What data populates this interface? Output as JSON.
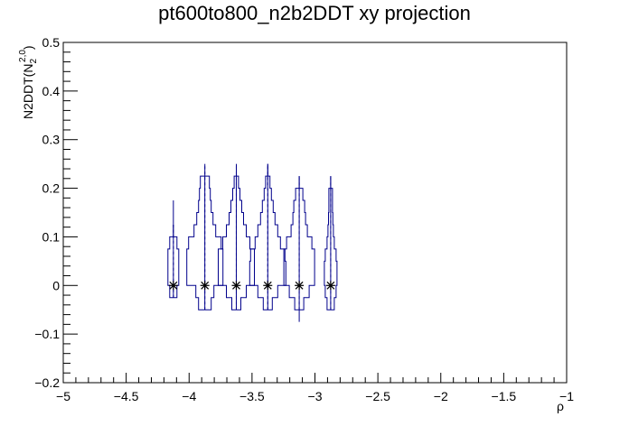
{
  "chart_data": {
    "type": "violin",
    "title": "pt600to800_n2b2DDT xy projection",
    "xlabel": "ρ",
    "ylabel_main": "N2DDT(N",
    "ylabel_sub": "2",
    "ylabel_sup": "2,0",
    "ylabel_close": ")",
    "xlim": [
      -5,
      -1
    ],
    "ylim": [
      -0.2,
      0.5
    ],
    "x_ticks": [
      -5,
      -4.5,
      -4,
      -3.5,
      -3,
      -2.5,
      -2,
      -1.5,
      -1
    ],
    "x_tick_labels": [
      "−5",
      "−4.5",
      "−4",
      "−3.5",
      "−3",
      "−2.5",
      "−2",
      "−1.5",
      "−1"
    ],
    "y_ticks": [
      -0.2,
      -0.1,
      0,
      0.1,
      0.2,
      0.3,
      0.4,
      0.5
    ],
    "y_tick_labels": [
      "−0.2",
      "−0.1",
      "0",
      "0.1",
      "0.2",
      "0.3",
      "0.4",
      "0.5"
    ],
    "line_color": "#00008b",
    "marker_color": "#000000",
    "series": [
      {
        "x": -4.125,
        "mean": 0,
        "profile": [
          {
            "y": -0.025,
            "w": 0.2
          },
          {
            "y": 0.0,
            "w": 0.3
          },
          {
            "y": 0.025,
            "w": 0.3
          },
          {
            "y": 0.05,
            "w": 0.3
          },
          {
            "y": 0.075,
            "w": 0.2
          },
          {
            "y": 0.1,
            "w": 0.0
          }
        ],
        "whisker": [
          -0.025,
          0.175
        ]
      },
      {
        "x": -3.875,
        "mean": 0,
        "profile": [
          {
            "y": -0.05,
            "w": 0.35
          },
          {
            "y": -0.025,
            "w": 0.5
          },
          {
            "y": 0.0,
            "w": 1.0
          },
          {
            "y": 0.025,
            "w": 1.0
          },
          {
            "y": 0.05,
            "w": 1.0
          },
          {
            "y": 0.075,
            "w": 0.9
          },
          {
            "y": 0.1,
            "w": 0.6
          },
          {
            "y": 0.125,
            "w": 0.45
          },
          {
            "y": 0.15,
            "w": 0.35
          },
          {
            "y": 0.175,
            "w": 0.3
          },
          {
            "y": 0.2,
            "w": 0.25
          },
          {
            "y": 0.225,
            "w": 0.0
          }
        ],
        "whisker": [
          -0.05,
          0.225
        ]
      },
      {
        "x": -3.625,
        "mean": 0,
        "profile": [
          {
            "y": -0.05,
            "w": 0.25
          },
          {
            "y": -0.025,
            "w": 0.55
          },
          {
            "y": 0.0,
            "w": 1.0
          },
          {
            "y": 0.025,
            "w": 1.0
          },
          {
            "y": 0.05,
            "w": 1.0
          },
          {
            "y": 0.075,
            "w": 0.75
          },
          {
            "y": 0.1,
            "w": 0.55
          },
          {
            "y": 0.125,
            "w": 0.4
          },
          {
            "y": 0.15,
            "w": 0.3
          },
          {
            "y": 0.175,
            "w": 0.2
          },
          {
            "y": 0.2,
            "w": 0.12
          },
          {
            "y": 0.225,
            "w": 0.0
          }
        ],
        "whisker": [
          -0.05,
          0.225
        ]
      },
      {
        "x": -3.375,
        "mean": 0,
        "profile": [
          {
            "y": -0.05,
            "w": 0.25
          },
          {
            "y": -0.025,
            "w": 0.55
          },
          {
            "y": 0.0,
            "w": 1.0
          },
          {
            "y": 0.025,
            "w": 1.0
          },
          {
            "y": 0.05,
            "w": 0.95
          },
          {
            "y": 0.075,
            "w": 0.7
          },
          {
            "y": 0.1,
            "w": 0.55
          },
          {
            "y": 0.125,
            "w": 0.4
          },
          {
            "y": 0.15,
            "w": 0.3
          },
          {
            "y": 0.175,
            "w": 0.2
          },
          {
            "y": 0.2,
            "w": 0.12
          },
          {
            "y": 0.225,
            "w": 0.0
          }
        ],
        "whisker": [
          -0.05,
          0.25
        ]
      },
      {
        "x": -3.125,
        "mean": 0,
        "profile": [
          {
            "y": -0.05,
            "w": 0.25
          },
          {
            "y": -0.025,
            "w": 0.55
          },
          {
            "y": 0.0,
            "w": 0.85
          },
          {
            "y": 0.025,
            "w": 0.85
          },
          {
            "y": 0.05,
            "w": 0.85
          },
          {
            "y": 0.075,
            "w": 0.7
          },
          {
            "y": 0.1,
            "w": 0.45
          },
          {
            "y": 0.125,
            "w": 0.35
          },
          {
            "y": 0.15,
            "w": 0.3
          },
          {
            "y": 0.175,
            "w": 0.2
          },
          {
            "y": 0.2,
            "w": 0.0
          }
        ],
        "whisker": [
          -0.075,
          0.225
        ]
      },
      {
        "x": -2.875,
        "mean": 0,
        "profile": [
          {
            "y": -0.05,
            "w": 0.2
          },
          {
            "y": -0.025,
            "w": 0.3
          },
          {
            "y": 0.0,
            "w": 0.35
          },
          {
            "y": 0.025,
            "w": 0.35
          },
          {
            "y": 0.05,
            "w": 0.3
          },
          {
            "y": 0.075,
            "w": 0.2
          },
          {
            "y": 0.1,
            "w": 0.15
          },
          {
            "y": 0.125,
            "w": 0.12
          },
          {
            "y": 0.15,
            "w": 0.1
          },
          {
            "y": 0.175,
            "w": 0.1
          },
          {
            "y": 0.2,
            "w": 0.0
          }
        ],
        "whisker": [
          -0.05,
          0.225
        ]
      }
    ]
  }
}
